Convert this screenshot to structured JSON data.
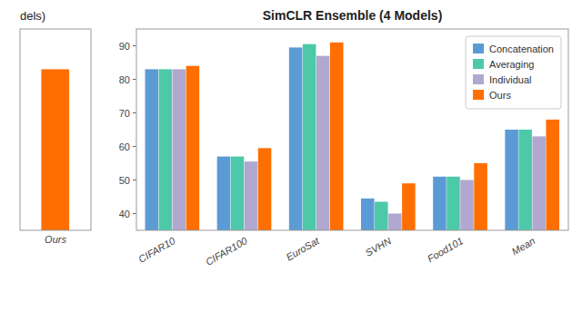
{
  "chart_data": [
    {
      "type": "bar",
      "title": "dels)",
      "categories": [
        "Ours"
      ],
      "values": [
        83.0
      ],
      "color": "#FF6E00",
      "ylim": [
        35,
        95
      ],
      "tick_labels": "x"
    },
    {
      "type": "bar",
      "title": "SimCLR Ensemble (4 Models)",
      "categories": [
        "CIFAR10",
        "CIFAR100",
        "EuroSat",
        "SVHN",
        "Food101",
        "Mean"
      ],
      "series": [
        {
          "name": "Concatenation",
          "color": "#5B9BD5",
          "values": [
            83.0,
            57.0,
            89.5,
            44.5,
            51.0,
            65.0
          ]
        },
        {
          "name": "Averaging",
          "color": "#4DC8A8",
          "values": [
            83.0,
            57.0,
            90.5,
            43.5,
            51.0,
            65.0
          ]
        },
        {
          "name": "Individual",
          "color": "#B0A8D0",
          "values": [
            83.0,
            55.5,
            87.0,
            40.0,
            50.0,
            63.0
          ]
        },
        {
          "name": "Ours",
          "color": "#FF6E00",
          "values": [
            84.0,
            59.5,
            91.0,
            49.0,
            55.0,
            68.0
          ]
        }
      ],
      "ylim": [
        35,
        95
      ],
      "yticks": [
        40,
        50,
        60,
        70,
        80,
        90
      ],
      "legend": "upper right"
    }
  ]
}
